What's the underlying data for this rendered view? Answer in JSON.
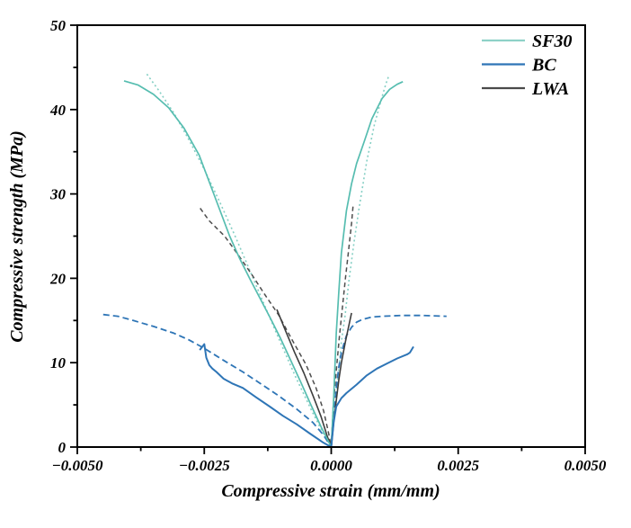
{
  "chart_data": {
    "type": "line",
    "title": "",
    "xlabel": "Compressive strain (mm/mm)",
    "ylabel": "Compressive strength (MPa)",
    "xlim": [
      -0.005,
      0.005
    ],
    "ylim": [
      0,
      50
    ],
    "grid": false,
    "legend_position": "top-right-inside",
    "frame_color": "#000000",
    "xticks": {
      "values": [
        -0.005,
        -0.0025,
        0.0,
        0.0025,
        0.005
      ],
      "labels": [
        "−0.0050",
        "−0.0025",
        "0.0000",
        "0.0025",
        "0.0050"
      ],
      "minor": [
        -0.00375,
        -0.00125,
        0.00125,
        0.00375
      ]
    },
    "yticks": {
      "values": [
        0,
        10,
        20,
        30,
        40,
        50
      ],
      "labels": [
        "0",
        "10",
        "20",
        "30",
        "40",
        "50"
      ],
      "minor": [
        5,
        15,
        25,
        35,
        45
      ]
    },
    "legend": [
      {
        "label": "SF30",
        "color": "#8ED1C7"
      },
      {
        "label": "BC",
        "color": "#2E75B6"
      },
      {
        "label": "LWA",
        "color": "#4A4A4A"
      }
    ],
    "series": [
      {
        "name": "SF30-dashed-left",
        "group": "SF30",
        "style": "dashed",
        "color": "#85CFC4",
        "width": 1.6,
        "dash": "2 3",
        "points": [
          [
            -0.00363,
            44.2
          ],
          [
            -0.0034,
            42.3
          ],
          [
            -0.0031,
            39.6
          ],
          [
            -0.0028,
            36.4
          ],
          [
            -0.0025,
            32.9
          ],
          [
            -0.0022,
            29.1
          ],
          [
            -0.0019,
            25.1
          ],
          [
            -0.0016,
            20.9
          ],
          [
            -0.0013,
            16.6
          ],
          [
            -0.001,
            12.4
          ],
          [
            -0.0007,
            8.3
          ],
          [
            -0.0004,
            4.5
          ],
          [
            -0.0002,
            2.1
          ],
          [
            0,
            0
          ]
        ]
      },
      {
        "name": "SF30-dashed-right",
        "group": "SF30",
        "style": "dashed",
        "color": "#85CFC4",
        "width": 1.6,
        "dash": "2 3",
        "points": [
          [
            0,
            0
          ],
          [
            0.0001,
            6
          ],
          [
            0.0002,
            12.5
          ],
          [
            0.00027,
            15.5
          ],
          [
            0.00035,
            19.8
          ],
          [
            0.00045,
            24.3
          ],
          [
            0.00055,
            28.4
          ],
          [
            0.0007,
            33.9
          ],
          [
            0.00085,
            38.2
          ],
          [
            0.001,
            41.5
          ],
          [
            0.00108,
            43.1
          ],
          [
            0.00114,
            44.1
          ]
        ]
      },
      {
        "name": "BC-dashed-left",
        "group": "BC",
        "style": "dashed",
        "color": "#2E75B6",
        "width": 1.8,
        "dash": "7 4",
        "points": [
          [
            -0.00449,
            15.7
          ],
          [
            -0.0042,
            15.5
          ],
          [
            -0.0039,
            15.0
          ],
          [
            -0.0035,
            14.3
          ],
          [
            -0.0031,
            13.5
          ],
          [
            -0.0028,
            12.7
          ],
          [
            -0.0025,
            11.7
          ],
          [
            -0.0021,
            10.2
          ],
          [
            -0.00174,
            8.9
          ],
          [
            -0.00139,
            7.5
          ],
          [
            -0.00104,
            6.1
          ],
          [
            -0.00068,
            4.5
          ],
          [
            -0.00036,
            2.9
          ],
          [
            -0.00015,
            1.4
          ],
          [
            0,
            0
          ]
        ]
      },
      {
        "name": "BC-dashed-right",
        "group": "BC",
        "style": "dashed",
        "color": "#2E75B6",
        "width": 1.8,
        "dash": "7 4",
        "points": [
          [
            0,
            0
          ],
          [
            5e-05,
            4.0
          ],
          [
            0.0001,
            7.0
          ],
          [
            0.00015,
            9.5
          ],
          [
            0.0002,
            11.2
          ],
          [
            0.0003,
            13.2
          ],
          [
            0.0004,
            14.2
          ],
          [
            0.0005,
            14.8
          ],
          [
            0.0006,
            15.1
          ],
          [
            0.0008,
            15.4
          ],
          [
            0.001,
            15.5
          ],
          [
            0.0014,
            15.6
          ],
          [
            0.0018,
            15.6
          ],
          [
            0.00227,
            15.5
          ]
        ]
      },
      {
        "name": "LWA-dashed-left",
        "group": "LWA",
        "style": "dashed",
        "color": "#4D4D4D",
        "width": 1.5,
        "dash": "5 3.5",
        "points": [
          [
            -0.00258,
            28.3
          ],
          [
            -0.0024,
            26.8
          ],
          [
            -0.0021,
            25.0
          ],
          [
            -0.0018,
            22.5
          ],
          [
            -0.00157,
            20.5
          ],
          [
            -0.0013,
            18.0
          ],
          [
            -0.00104,
            15.7
          ],
          [
            -0.00077,
            12.7
          ],
          [
            -0.0005,
            9.8
          ],
          [
            -0.0003,
            7.0
          ],
          [
            -0.00015,
            4.3
          ],
          [
            -5e-05,
            1.6
          ],
          [
            0,
            0
          ]
        ]
      },
      {
        "name": "LWA-dashed-right",
        "group": "LWA",
        "style": "dashed",
        "color": "#4D4D4D",
        "width": 1.5,
        "dash": "5 3.5",
        "points": [
          [
            0,
            0
          ],
          [
            4e-05,
            5.0
          ],
          [
            0.0001,
            9.0
          ],
          [
            0.00016,
            13.0
          ],
          [
            0.00022,
            16.5
          ],
          [
            0.00028,
            20.0
          ],
          [
            0.00034,
            23.2
          ],
          [
            0.0004,
            26.5
          ],
          [
            0.00043,
            28.6
          ]
        ]
      },
      {
        "name": "LWA-solid-left",
        "group": "LWA",
        "style": "solid",
        "color": "#3D3D3D",
        "width": 1.6,
        "dash": null,
        "points": [
          [
            -0.00107,
            16.3
          ],
          [
            -0.0009,
            13.8
          ],
          [
            -0.00072,
            11.2
          ],
          [
            -0.00054,
            8.8
          ],
          [
            -0.00036,
            6.1
          ],
          [
            -0.0002,
            3.6
          ],
          [
            -8e-05,
            1.3
          ],
          [
            0,
            0
          ]
        ]
      },
      {
        "name": "LWA-solid-right",
        "group": "LWA",
        "style": "solid",
        "color": "#3D3D3D",
        "width": 1.6,
        "dash": null,
        "points": [
          [
            0,
            0
          ],
          [
            5e-05,
            3.0
          ],
          [
            0.0001,
            5.5
          ],
          [
            0.00015,
            8.0
          ],
          [
            0.0002,
            10.0
          ],
          [
            0.00028,
            12.5
          ],
          [
            0.00035,
            14.5
          ],
          [
            0.0004,
            15.9
          ]
        ]
      },
      {
        "name": "SF30-solid-left",
        "group": "SF30",
        "style": "solid",
        "color": "#56BDB0",
        "width": 1.7,
        "dash": null,
        "points": [
          [
            -0.00408,
            43.4
          ],
          [
            -0.0038,
            42.9
          ],
          [
            -0.0035,
            41.8
          ],
          [
            -0.0032,
            40.2
          ],
          [
            -0.0029,
            37.8
          ],
          [
            -0.0026,
            34.6
          ],
          [
            -0.0024,
            31.4
          ],
          [
            -0.0022,
            28.2
          ],
          [
            -0.002,
            25.0
          ],
          [
            -0.0018,
            22.3
          ],
          [
            -0.0016,
            19.9
          ],
          [
            -0.0014,
            17.6
          ],
          [
            -0.0012,
            15.3
          ],
          [
            -0.001,
            12.9
          ],
          [
            -0.0008,
            10.3
          ],
          [
            -0.0006,
            7.7
          ],
          [
            -0.0004,
            5.0
          ],
          [
            -0.0002,
            2.4
          ],
          [
            0,
            0
          ]
        ]
      },
      {
        "name": "SF30-solid-right",
        "group": "SF30",
        "style": "solid",
        "color": "#56BDB0",
        "width": 1.7,
        "dash": null,
        "points": [
          [
            0,
            0
          ],
          [
            5e-05,
            6
          ],
          [
            0.0001,
            13.5
          ],
          [
            0.00015,
            18.5
          ],
          [
            0.0002,
            23
          ],
          [
            0.0003,
            28
          ],
          [
            0.0004,
            31.2
          ],
          [
            0.0005,
            33.6
          ],
          [
            0.00065,
            36.2
          ],
          [
            0.0008,
            38.9
          ],
          [
            0.001,
            41.3
          ],
          [
            0.00115,
            42.4
          ],
          [
            0.0013,
            43.0
          ],
          [
            0.00141,
            43.3
          ]
        ]
      },
      {
        "name": "BC-solid-left",
        "group": "BC",
        "style": "solid",
        "color": "#2E75B6",
        "width": 2.0,
        "dash": null,
        "points": [
          [
            -0.00259,
            11.5
          ],
          [
            -0.0025,
            12.2
          ],
          [
            -0.00246,
            10.6
          ],
          [
            -0.0024,
            9.7
          ],
          [
            -0.00234,
            9.3
          ],
          [
            -0.00226,
            8.9
          ],
          [
            -0.00212,
            8.1
          ],
          [
            -0.00194,
            7.5
          ],
          [
            -0.00174,
            7.0
          ],
          [
            -0.00148,
            5.9
          ],
          [
            -0.00121,
            4.8
          ],
          [
            -0.00095,
            3.7
          ],
          [
            -0.00068,
            2.7
          ],
          [
            -0.00042,
            1.6
          ],
          [
            -0.00015,
            0.5
          ],
          [
            0,
            0
          ]
        ]
      },
      {
        "name": "BC-solid-right",
        "group": "BC",
        "style": "solid",
        "color": "#2E75B6",
        "width": 2.0,
        "dash": null,
        "points": [
          [
            0,
            0
          ],
          [
            5e-05,
            3.0
          ],
          [
            0.0001,
            4.8
          ],
          [
            0.0002,
            5.8
          ],
          [
            0.0003,
            6.4
          ],
          [
            0.0005,
            7.4
          ],
          [
            0.0007,
            8.5
          ],
          [
            0.0009,
            9.3
          ],
          [
            0.0011,
            9.9
          ],
          [
            0.0013,
            10.5
          ],
          [
            0.0015,
            11.0
          ],
          [
            0.00155,
            11.2
          ],
          [
            0.00162,
            11.9
          ]
        ]
      }
    ]
  }
}
